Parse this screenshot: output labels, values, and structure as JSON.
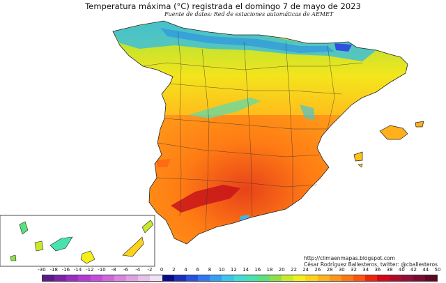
{
  "header": {
    "title": "Temperatura máxima (°C) registrada el domingo 7 de mayo de 2023",
    "subtitle": "Fuente de datos: Red de estaciones automáticas de AEMET"
  },
  "credits": {
    "url": "http://climaenmapas.blogspot.com",
    "author": "César Rodríguez Ballesteros, twitter: @cballesteros"
  },
  "legend": {
    "ticks": [
      "-30",
      "-18",
      "-16",
      "-14",
      "-12",
      "-10",
      "-8",
      "-6",
      "-4",
      "-2",
      "0",
      "2",
      "4",
      "6",
      "8",
      "10",
      "12",
      "14",
      "16",
      "18",
      "20",
      "22",
      "24",
      "26",
      "28",
      "30",
      "32",
      "34",
      "36",
      "38",
      "40",
      "42",
      "44",
      "50"
    ],
    "colors": [
      "#5a1a8c",
      "#7a22a8",
      "#9a2cc4",
      "#b23ad6",
      "#c64ce0",
      "#cf66df",
      "#d885de",
      "#dfa2e0",
      "#e6c1e8",
      "#f0e2f3",
      "#0a0a8a",
      "#1c2fb8",
      "#2a50e0",
      "#2f78f2",
      "#34a0f4",
      "#3cc4f0",
      "#42dcd8",
      "#48e2b0",
      "#5ae07c",
      "#8fe046",
      "#c8ea2a",
      "#f2f018",
      "#ffd21a",
      "#ffb31c",
      "#ff9418",
      "#ff7610",
      "#ff520c",
      "#f0220c",
      "#d40814",
      "#b00a2a",
      "#920c38",
      "#7a0a30",
      "#5c0820"
    ]
  }
}
